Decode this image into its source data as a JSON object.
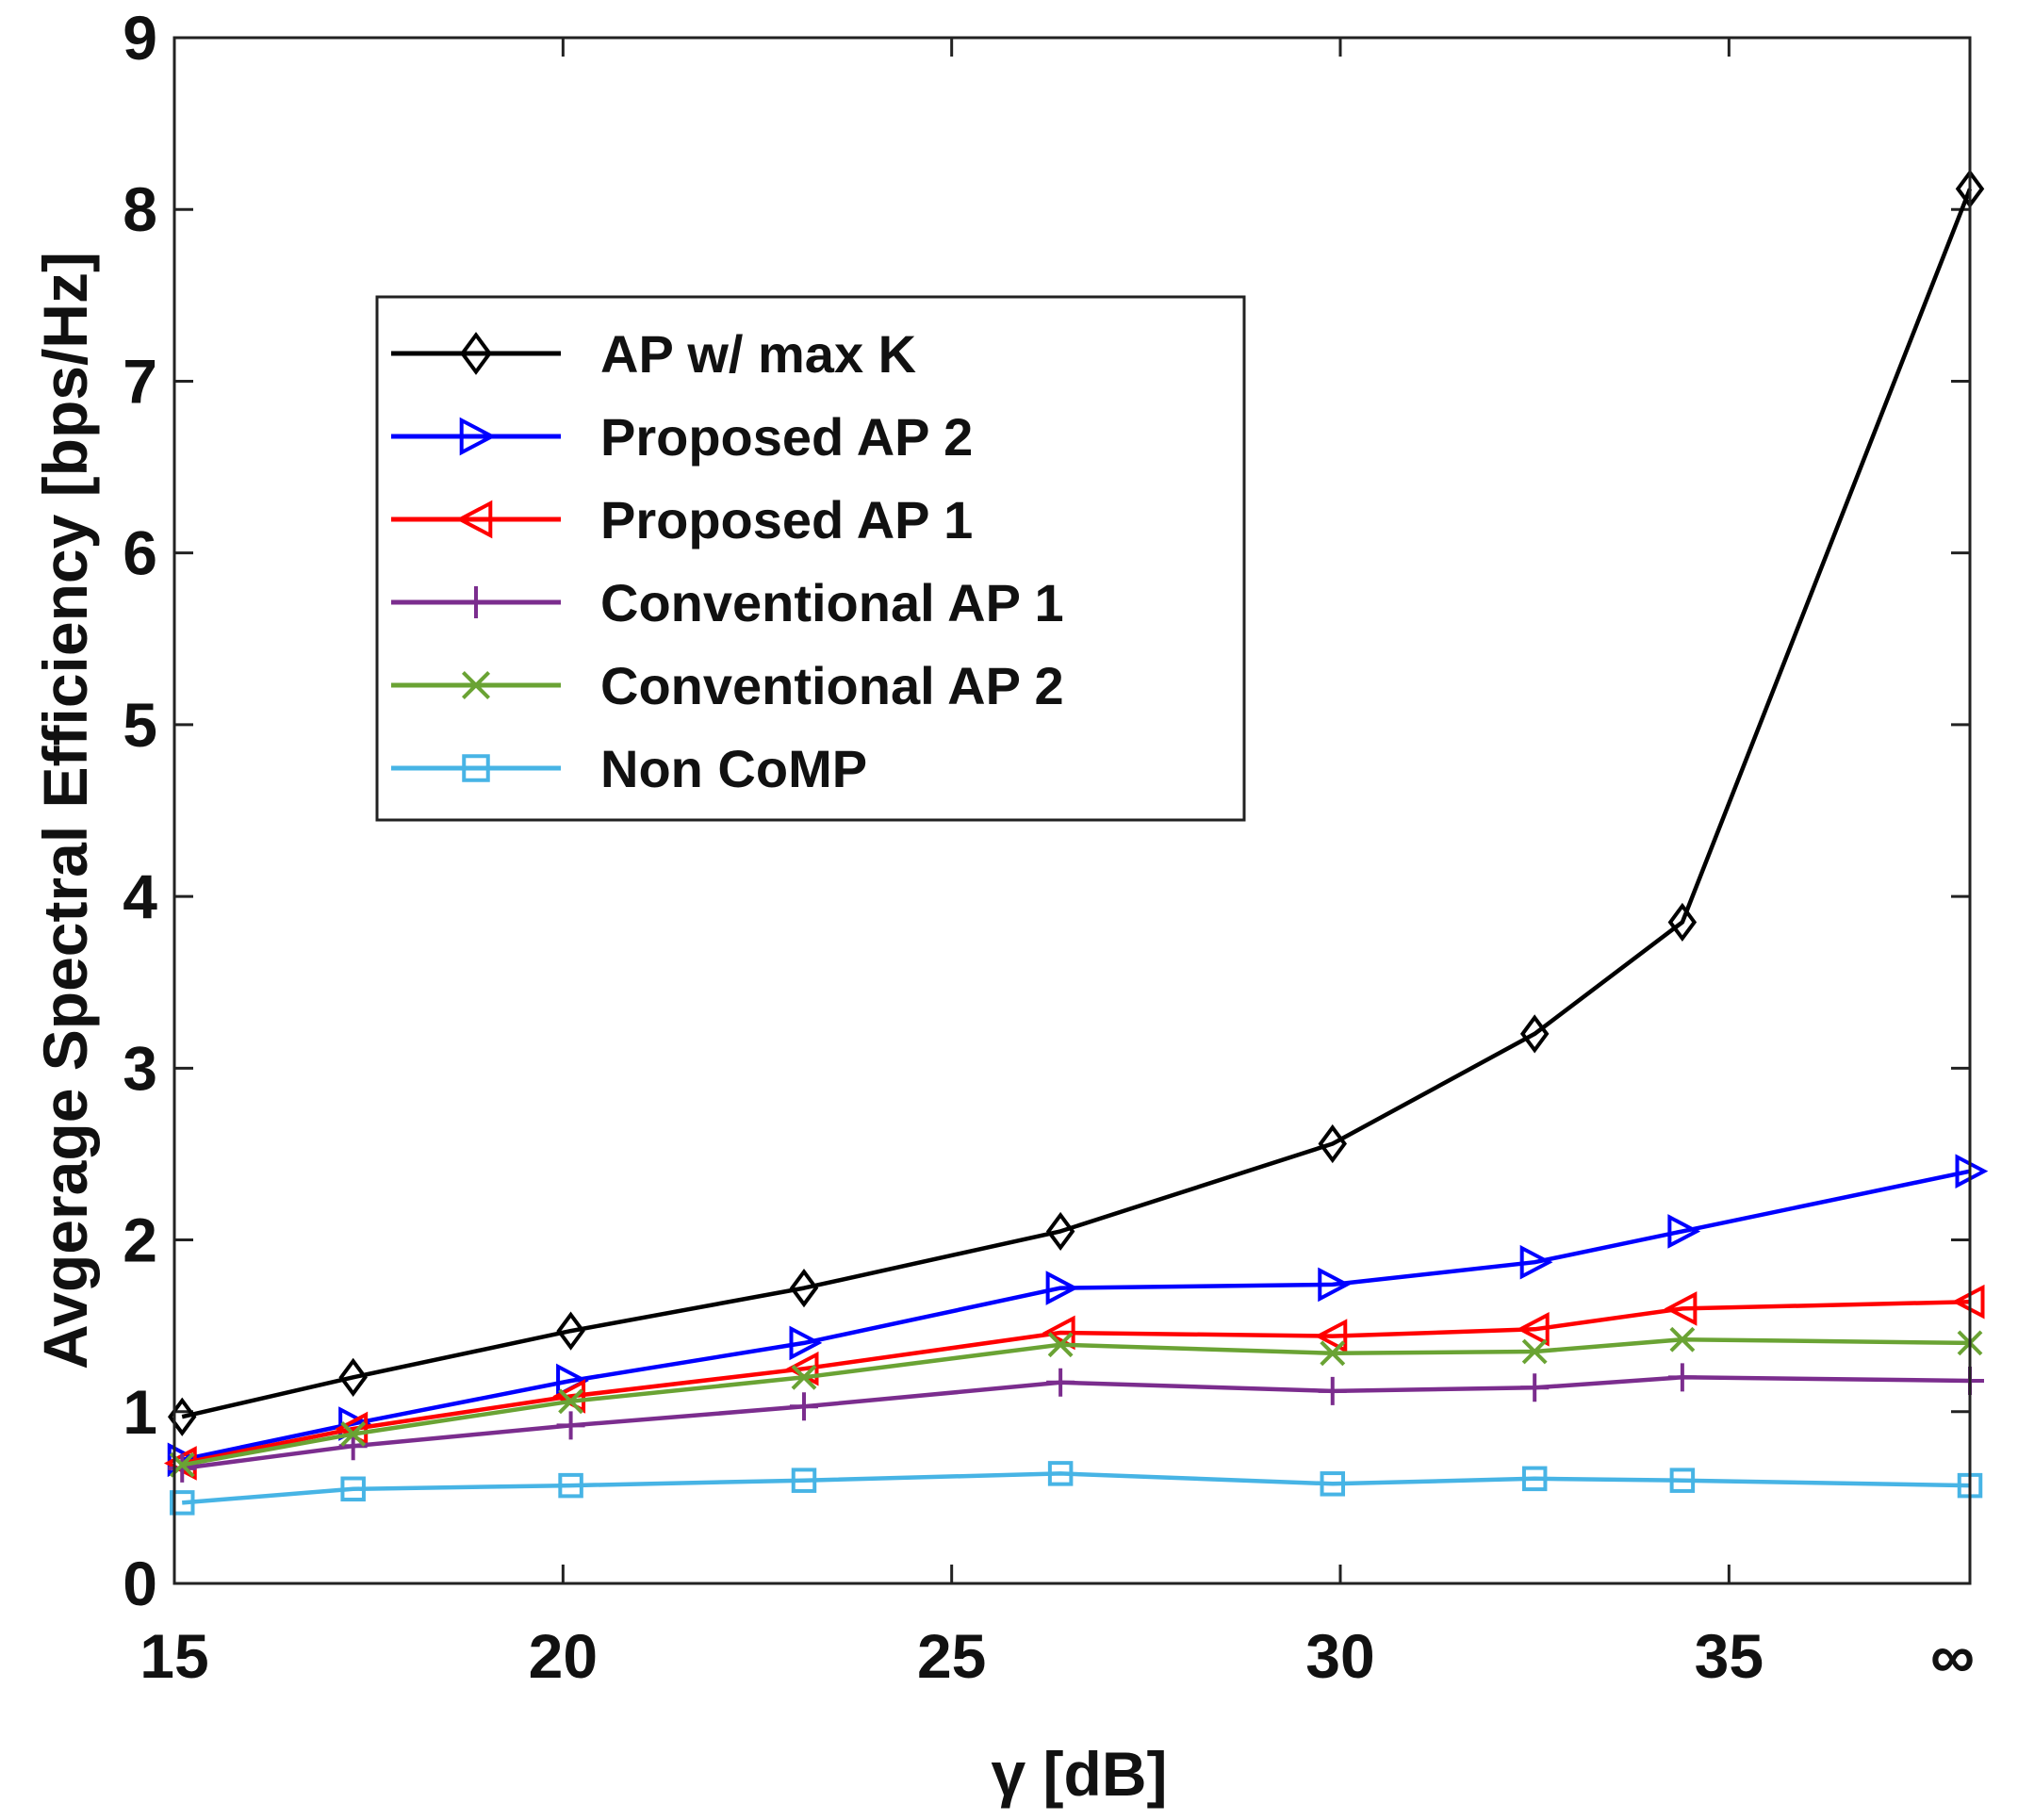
{
  "chart_data": {
    "type": "line",
    "title": "",
    "xlabel": "γ [dB]",
    "ylabel": "Avgerage Spectral Efficiency [bps/Hz]",
    "xlim": [
      15,
      38.1
    ],
    "ylim": [
      0,
      9
    ],
    "xticks": [
      {
        "value": 15,
        "label": "15"
      },
      {
        "value": 20,
        "label": "20"
      },
      {
        "value": 25,
        "label": "25"
      },
      {
        "value": 30,
        "label": "30"
      },
      {
        "value": 35,
        "label": "35"
      },
      {
        "value": 38.1,
        "label": "∞"
      }
    ],
    "yticks": [
      {
        "value": 0,
        "label": "0"
      },
      {
        "value": 1,
        "label": "1"
      },
      {
        "value": 2,
        "label": "2"
      },
      {
        "value": 3,
        "label": "3"
      },
      {
        "value": 4,
        "label": "4"
      },
      {
        "value": 5,
        "label": "5"
      },
      {
        "value": 6,
        "label": "6"
      },
      {
        "value": 7,
        "label": "7"
      },
      {
        "value": 8,
        "label": "8"
      },
      {
        "value": 9,
        "label": "9"
      }
    ],
    "x": [
      15.1,
      17.3,
      20.1,
      23.1,
      26.4,
      29.9,
      32.5,
      34.4,
      38.1
    ],
    "legend_position": "upper-left",
    "series": [
      {
        "name": "AP w/ max K",
        "color": "#000000",
        "marker": "diamond",
        "values": [
          0.97,
          1.2,
          1.47,
          1.72,
          2.05,
          2.56,
          3.2,
          3.85,
          8.12
        ]
      },
      {
        "name": "Proposed AP 2",
        "color": "#0000ff",
        "marker": "triangle-right",
        "values": [
          0.72,
          0.93,
          1.18,
          1.4,
          1.72,
          1.74,
          1.87,
          2.05,
          2.4
        ]
      },
      {
        "name": "Proposed AP 1",
        "color": "#ff0000",
        "marker": "triangle-left",
        "values": [
          0.7,
          0.9,
          1.09,
          1.25,
          1.46,
          1.44,
          1.48,
          1.6,
          1.64
        ]
      },
      {
        "name": "Conventional AP 1",
        "color": "#7b2d8e",
        "marker": "plus",
        "values": [
          0.67,
          0.8,
          0.92,
          1.03,
          1.17,
          1.12,
          1.14,
          1.2,
          1.18
        ]
      },
      {
        "name": "Conventional AP 2",
        "color": "#6aa334",
        "marker": "x",
        "values": [
          0.69,
          0.87,
          1.06,
          1.2,
          1.39,
          1.34,
          1.35,
          1.42,
          1.4
        ]
      },
      {
        "name": "Non CoMP",
        "color": "#47b4e5",
        "marker": "square",
        "values": [
          0.47,
          0.55,
          0.57,
          0.6,
          0.64,
          0.58,
          0.61,
          0.6,
          0.57
        ]
      }
    ]
  }
}
